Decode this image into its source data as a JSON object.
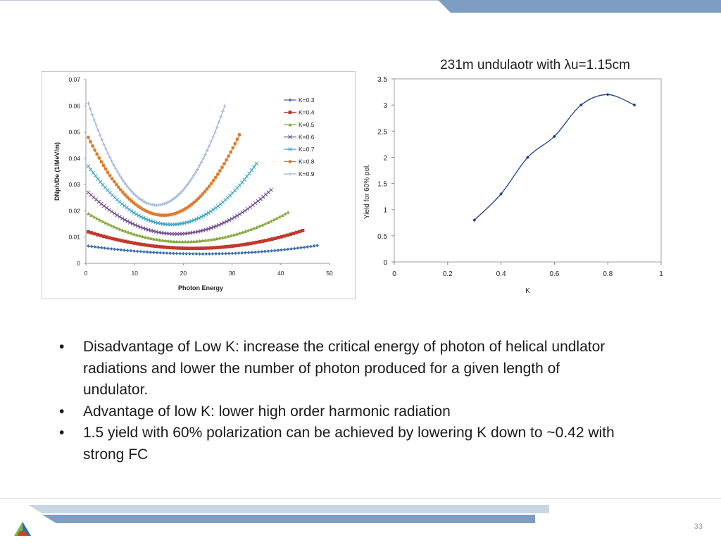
{
  "slide": {
    "title": "231m undulaotr with λu=1.15cm",
    "page_number": "33",
    "bullets": [
      "Disadvantage of Low K:  increase  the critical energy of photon of helical undlator radiations and lower the number of photon produced for a given length of undulator.",
      "Advantage of low K: lower high order harmonic radiation",
      "1.5 yield with 60% polarization can be achieved by lowering K down to ~0.42 with strong FC"
    ],
    "bullet_char": "•"
  },
  "colors": {
    "band": "#7d9dc3",
    "band_light": "#c9d6e6",
    "logo_green": "#7ab648",
    "logo_blue": "#2e6ab1",
    "logo_red": "#d6402b"
  },
  "chart_data": [
    {
      "type": "line",
      "title": "",
      "xlabel": "Photon Energy",
      "ylabel": "DNph/De (1/MeV/m)",
      "xlim": [
        0,
        50
      ],
      "ylim": [
        0,
        0.07
      ],
      "xticks": [
        "0",
        "10",
        "20",
        "30",
        "40",
        "50"
      ],
      "yticks": [
        "0",
        "0.01",
        "0.02",
        "0.03",
        "0.04",
        "0.05",
        "0.06",
        "0.07"
      ],
      "legend_position": "right",
      "grid": false,
      "series": [
        {
          "name": "K=0.3",
          "color": "#3b6fb0",
          "marker": "diamond",
          "x_range": [
            0.5,
            47.5
          ],
          "vertex": [
            24,
            0.0036
          ],
          "end_values": [
            0.0066,
            0.0068
          ]
        },
        {
          "name": "K=0.4",
          "color": "#c0392b",
          "marker": "square",
          "x_range": [
            0.5,
            44.5
          ],
          "vertex": [
            22,
            0.0057
          ],
          "end_values": [
            0.012,
            0.0125
          ]
        },
        {
          "name": "K=0.5",
          "color": "#86a83e",
          "marker": "triangle",
          "x_range": [
            0.5,
            41.5
          ],
          "vertex": [
            20,
            0.0083
          ],
          "end_values": [
            0.019,
            0.0195
          ]
        },
        {
          "name": "K=0.6",
          "color": "#6e4a8e",
          "marker": "x",
          "x_range": [
            0.5,
            38
          ],
          "vertex": [
            18.5,
            0.0112
          ],
          "end_values": [
            0.027,
            0.028
          ]
        },
        {
          "name": "K=0.7",
          "color": "#3ba3c2",
          "marker": "x",
          "x_range": [
            0.5,
            35
          ],
          "vertex": [
            17.5,
            0.0148
          ],
          "end_values": [
            0.037,
            0.038
          ]
        },
        {
          "name": "K=0.8",
          "color": "#e07b2b",
          "marker": "circle",
          "x_range": [
            0.5,
            31.5
          ],
          "vertex": [
            16,
            0.0183
          ],
          "end_values": [
            0.048,
            0.049
          ]
        },
        {
          "name": "K=0.9",
          "color": "#9fb4d8",
          "marker": "plus",
          "x_range": [
            0.5,
            28.5
          ],
          "vertex": [
            14.5,
            0.0222
          ],
          "end_values": [
            0.061,
            0.06
          ]
        }
      ]
    },
    {
      "type": "line",
      "title": "231m undulaotr with λu=1.15cm",
      "xlabel": "K",
      "ylabel": "Yield for 60% pol.",
      "xlim": [
        0,
        1
      ],
      "ylim": [
        0,
        3.5
      ],
      "xticks": [
        "0",
        "0.2",
        "0.4",
        "0.6",
        "0.8",
        "1"
      ],
      "yticks": [
        "0",
        "0.5",
        "1",
        "1.5",
        "2",
        "2.5",
        "3",
        "3.5"
      ],
      "grid": false,
      "series": [
        {
          "name": "",
          "color": "#1f3f8f",
          "marker": "diamond",
          "x": [
            0.3,
            0.4,
            0.5,
            0.6,
            0.7,
            0.8,
            0.9
          ],
          "y": [
            0.8,
            1.3,
            2.0,
            2.4,
            3.0,
            3.2,
            3.0
          ]
        }
      ]
    }
  ]
}
